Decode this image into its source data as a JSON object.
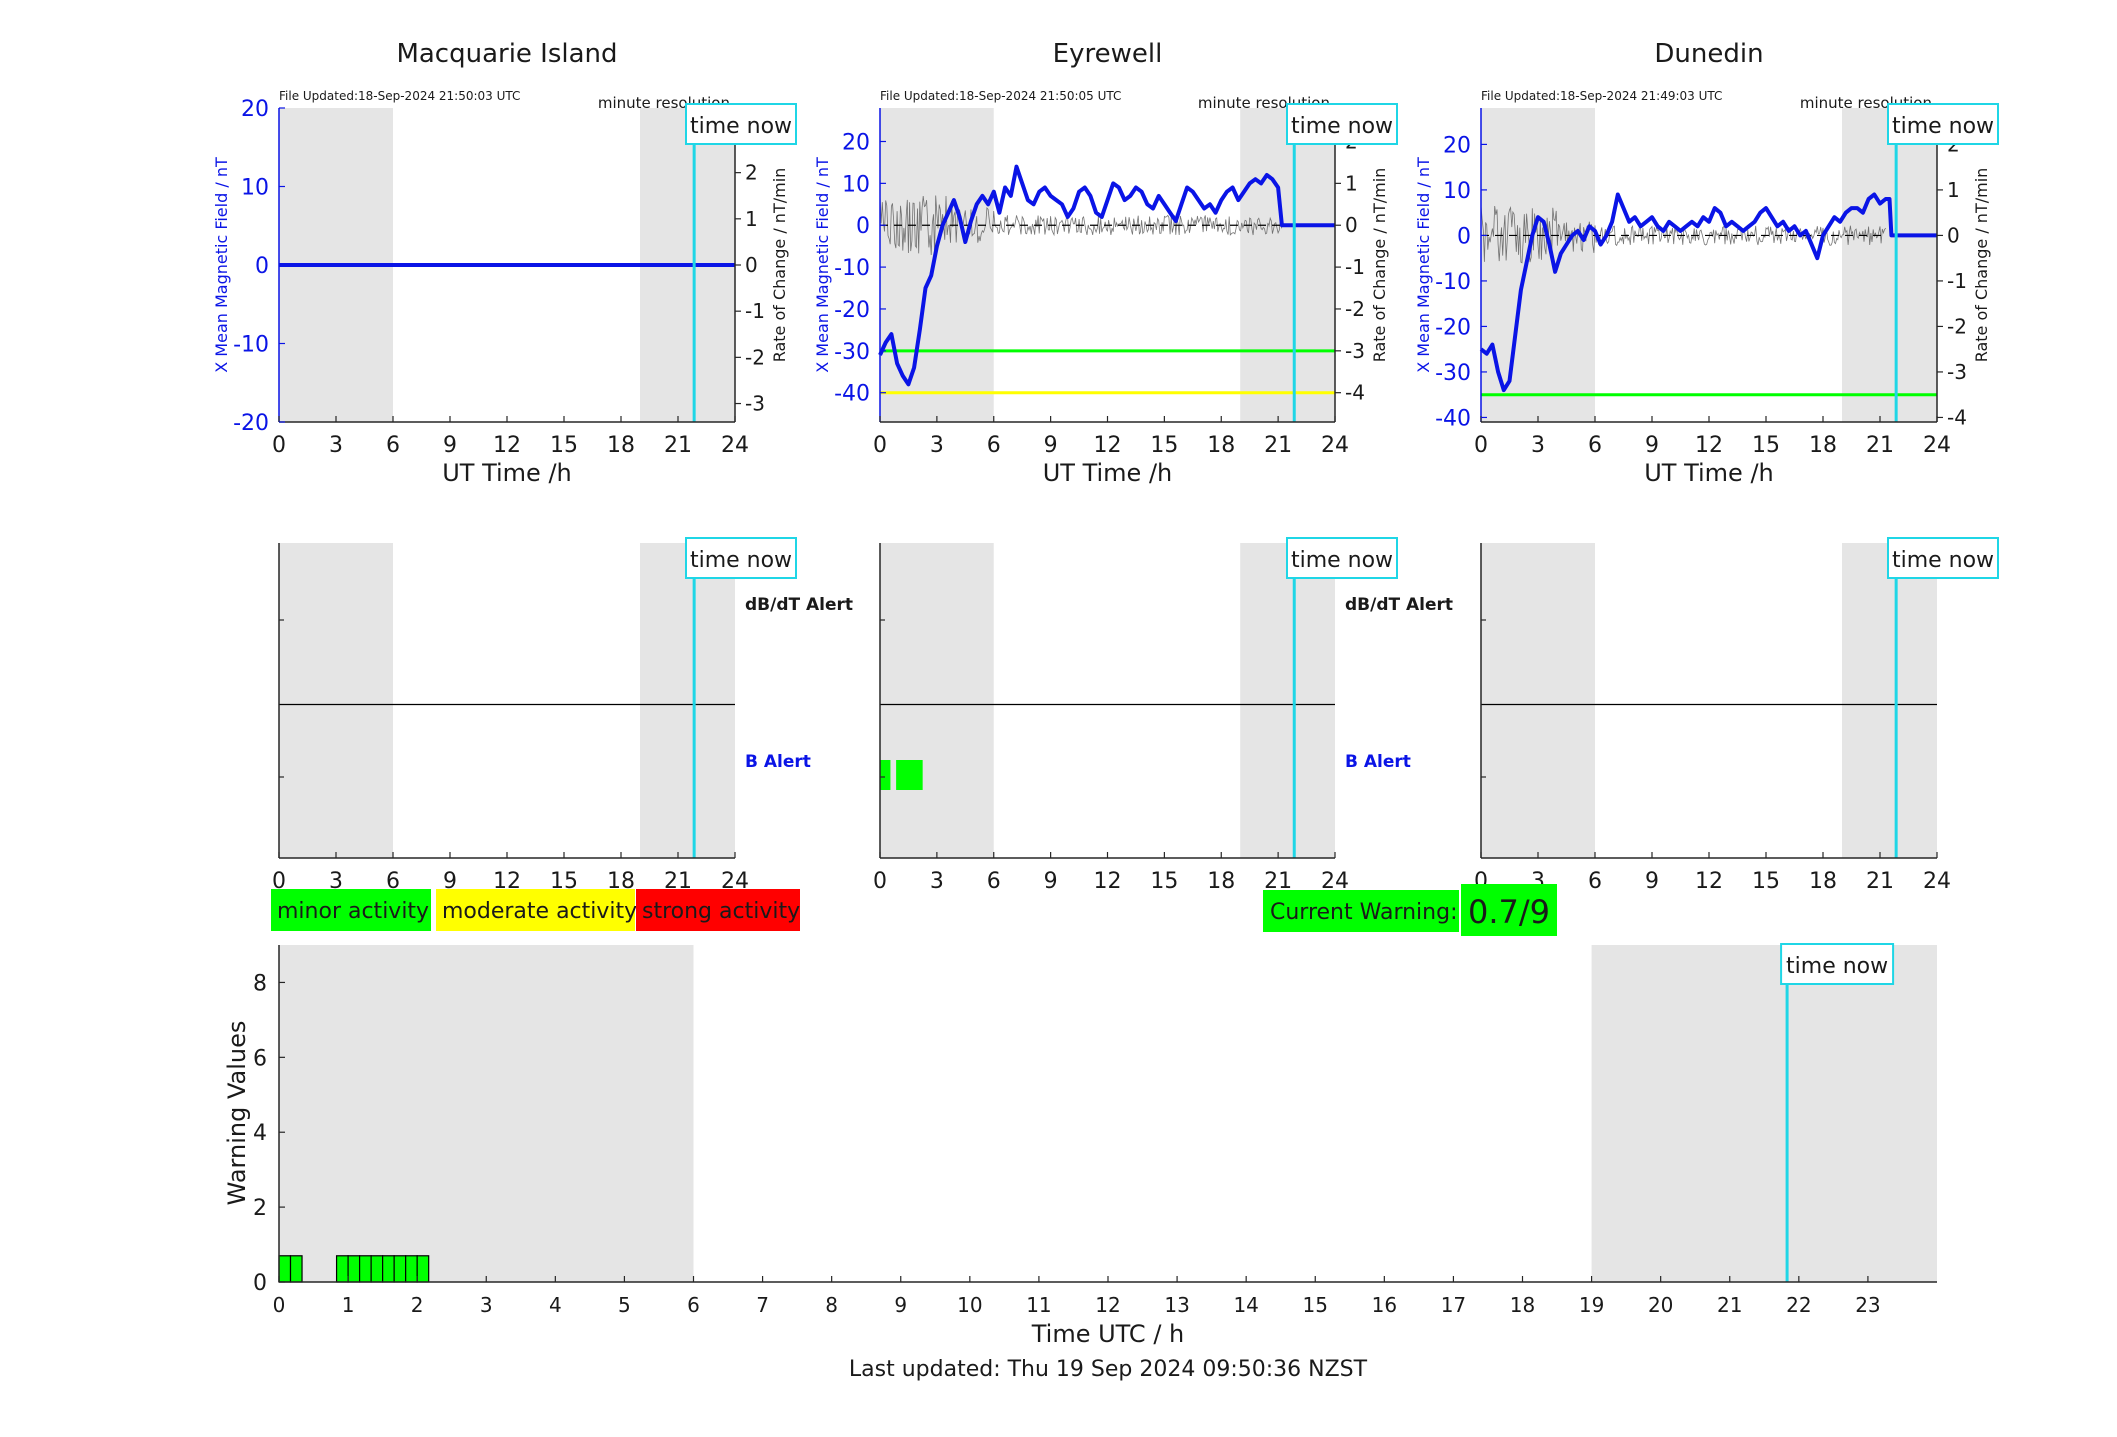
{
  "colors": {
    "night": "#e5e5e5",
    "series": "#0a14e6",
    "rate": "#555555",
    "now": "#1fd6e6",
    "minor": "#00ff00",
    "moderate": "#ffff00",
    "strong": "#ff0000",
    "b_alert": "#0a14e6"
  },
  "common": {
    "time_now_label": "time now",
    "minute_resolution": "minute resolution",
    "x_label": "UT Time /h",
    "left_y_label": "X Mean Magnetic Field / nT",
    "right_y_label": "Rate of Change / nT/min",
    "dbdt_alert": "dB/dT Alert",
    "b_alert": "B Alert"
  },
  "legend": {
    "minor": "minor activity",
    "moderate": "moderate activity",
    "strong": "strong activity"
  },
  "current_warning": {
    "label": "Current Warning:",
    "value": "0.7/9"
  },
  "footer": {
    "last_updated": "Last updated: Thu 19 Sep 2024 09:50:36 NZST"
  },
  "warning_chart": {
    "ylabel": "Warning Values",
    "xlabel": "Time UTC / h"
  },
  "chart_data": [
    {
      "type": "line",
      "title": "Macquarie Island",
      "file_updated": "File Updated:18-Sep-2024 21:50:03 UTC",
      "xlabel": "UT Time /h",
      "ylabel": "X Mean Magnetic Field / nT",
      "ylabel_right": "Rate of Change / nT/min",
      "xlim": [
        0,
        24
      ],
      "xticks": [
        0,
        3,
        6,
        9,
        12,
        15,
        18,
        21,
        24
      ],
      "ylim": [
        -20,
        20
      ],
      "yticks": [
        -20,
        -10,
        0,
        10,
        20
      ],
      "ylim_right": [
        -3.4,
        3.4
      ],
      "yticks_right": [
        -3,
        -2,
        -1,
        0,
        1,
        2,
        3
      ],
      "night_shading": [
        [
          0,
          6
        ],
        [
          19,
          24
        ]
      ],
      "time_now": 21.85,
      "series": [
        {
          "values": [
            [
              0,
              0
            ],
            [
              24,
              0
            ]
          ]
        }
      ],
      "threshold_lines": []
    },
    {
      "type": "line",
      "title": "Eyrewell",
      "file_updated": "File Updated:18-Sep-2024 21:50:05 UTC",
      "xlabel": "UT Time /h",
      "ylabel": "X Mean Magnetic Field / nT",
      "ylabel_right": "Rate of Change / nT/min",
      "xlim": [
        0,
        24
      ],
      "xticks": [
        0,
        3,
        6,
        9,
        12,
        15,
        18,
        21,
        24
      ],
      "ylim": [
        -47,
        28
      ],
      "yticks": [
        -40,
        -30,
        -20,
        -10,
        0,
        10,
        20
      ],
      "ylim_right": [
        -4.7,
        2.8
      ],
      "yticks_right": [
        -4,
        -3,
        -2,
        -1,
        0,
        1,
        2
      ],
      "night_shading": [
        [
          0,
          6
        ],
        [
          19,
          24
        ]
      ],
      "time_now": 21.85,
      "series": [
        {
          "values": [
            [
              0,
              -31
            ],
            [
              0.3,
              -28
            ],
            [
              0.6,
              -26
            ],
            [
              0.9,
              -33
            ],
            [
              1.2,
              -36
            ],
            [
              1.5,
              -38
            ],
            [
              1.8,
              -34
            ],
            [
              2.1,
              -25
            ],
            [
              2.4,
              -15
            ],
            [
              2.7,
              -12
            ],
            [
              3.0,
              -5
            ],
            [
              3.3,
              0
            ],
            [
              3.6,
              3
            ],
            [
              3.9,
              6
            ],
            [
              4.2,
              2
            ],
            [
              4.5,
              -4
            ],
            [
              4.8,
              1
            ],
            [
              5.1,
              5
            ],
            [
              5.4,
              7
            ],
            [
              5.7,
              5
            ],
            [
              6.0,
              8
            ],
            [
              6.3,
              3
            ],
            [
              6.6,
              9
            ],
            [
              6.9,
              7
            ],
            [
              7.2,
              14
            ],
            [
              7.5,
              10
            ],
            [
              7.8,
              6
            ],
            [
              8.1,
              5
            ],
            [
              8.4,
              8
            ],
            [
              8.7,
              9
            ],
            [
              9.0,
              7
            ],
            [
              9.3,
              6
            ],
            [
              9.6,
              5
            ],
            [
              9.9,
              2
            ],
            [
              10.2,
              4
            ],
            [
              10.5,
              8
            ],
            [
              10.8,
              9
            ],
            [
              11.1,
              7
            ],
            [
              11.4,
              3
            ],
            [
              11.7,
              2
            ],
            [
              12.0,
              6
            ],
            [
              12.3,
              10
            ],
            [
              12.6,
              9
            ],
            [
              12.9,
              6
            ],
            [
              13.2,
              7
            ],
            [
              13.5,
              9
            ],
            [
              13.8,
              8
            ],
            [
              14.1,
              5
            ],
            [
              14.4,
              4
            ],
            [
              14.7,
              7
            ],
            [
              15.0,
              5
            ],
            [
              15.3,
              3
            ],
            [
              15.6,
              1
            ],
            [
              15.9,
              5
            ],
            [
              16.2,
              9
            ],
            [
              16.5,
              8
            ],
            [
              16.8,
              6
            ],
            [
              17.1,
              4
            ],
            [
              17.4,
              5
            ],
            [
              17.7,
              3
            ],
            [
              18.0,
              6
            ],
            [
              18.3,
              8
            ],
            [
              18.6,
              9
            ],
            [
              18.9,
              6
            ],
            [
              19.2,
              8
            ],
            [
              19.5,
              10
            ],
            [
              19.8,
              11
            ],
            [
              20.1,
              10
            ],
            [
              20.4,
              12
            ],
            [
              20.7,
              11
            ],
            [
              21.0,
              9
            ],
            [
              21.2,
              0
            ],
            [
              21.85,
              0
            ],
            [
              24,
              0
            ]
          ]
        }
      ],
      "threshold_lines": [
        {
          "value": -30,
          "color": "#00ff00"
        },
        {
          "value": -40,
          "color": "#ffff00"
        }
      ]
    },
    {
      "type": "line",
      "title": "Dunedin",
      "file_updated": "File Updated:18-Sep-2024 21:49:03 UTC",
      "xlabel": "UT Time /h",
      "ylabel": "X Mean Magnetic Field / nT",
      "ylabel_right": "Rate of Change / nT/min",
      "xlim": [
        0,
        24
      ],
      "xticks": [
        0,
        3,
        6,
        9,
        12,
        15,
        18,
        21,
        24
      ],
      "ylim": [
        -41,
        28
      ],
      "yticks": [
        -40,
        -30,
        -20,
        -10,
        0,
        10,
        20
      ],
      "ylim_right": [
        -4.1,
        2.8
      ],
      "yticks_right": [
        -4,
        -3,
        -2,
        -1,
        0,
        1,
        2
      ],
      "night_shading": [
        [
          0,
          6
        ],
        [
          19,
          24
        ]
      ],
      "time_now": 21.85,
      "series": [
        {
          "values": [
            [
              0,
              -25
            ],
            [
              0.3,
              -26
            ],
            [
              0.6,
              -24
            ],
            [
              0.9,
              -30
            ],
            [
              1.2,
              -34
            ],
            [
              1.5,
              -32
            ],
            [
              1.8,
              -22
            ],
            [
              2.1,
              -12
            ],
            [
              2.4,
              -6
            ],
            [
              2.7,
              0
            ],
            [
              3.0,
              4
            ],
            [
              3.3,
              3
            ],
            [
              3.6,
              -2
            ],
            [
              3.9,
              -8
            ],
            [
              4.2,
              -4
            ],
            [
              4.5,
              -2
            ],
            [
              4.8,
              0
            ],
            [
              5.1,
              1
            ],
            [
              5.4,
              -1
            ],
            [
              5.7,
              2
            ],
            [
              6.0,
              1
            ],
            [
              6.3,
              -2
            ],
            [
              6.6,
              0
            ],
            [
              6.9,
              3
            ],
            [
              7.2,
              9
            ],
            [
              7.5,
              6
            ],
            [
              7.8,
              3
            ],
            [
              8.1,
              4
            ],
            [
              8.4,
              2
            ],
            [
              8.7,
              3
            ],
            [
              9.0,
              4
            ],
            [
              9.3,
              2
            ],
            [
              9.6,
              1
            ],
            [
              9.9,
              3
            ],
            [
              10.2,
              2
            ],
            [
              10.5,
              1
            ],
            [
              10.8,
              2
            ],
            [
              11.1,
              3
            ],
            [
              11.4,
              2
            ],
            [
              11.7,
              4
            ],
            [
              12.0,
              3
            ],
            [
              12.3,
              6
            ],
            [
              12.6,
              5
            ],
            [
              12.9,
              2
            ],
            [
              13.2,
              3
            ],
            [
              13.5,
              2
            ],
            [
              13.8,
              1
            ],
            [
              14.1,
              2
            ],
            [
              14.4,
              3
            ],
            [
              14.7,
              5
            ],
            [
              15.0,
              6
            ],
            [
              15.3,
              4
            ],
            [
              15.6,
              2
            ],
            [
              15.9,
              3
            ],
            [
              16.2,
              1
            ],
            [
              16.5,
              2
            ],
            [
              16.8,
              0
            ],
            [
              17.1,
              1
            ],
            [
              17.4,
              -2
            ],
            [
              17.7,
              -5
            ],
            [
              18.0,
              0
            ],
            [
              18.3,
              2
            ],
            [
              18.6,
              4
            ],
            [
              18.9,
              3
            ],
            [
              19.2,
              5
            ],
            [
              19.5,
              6
            ],
            [
              19.8,
              6
            ],
            [
              20.1,
              5
            ],
            [
              20.4,
              8
            ],
            [
              20.7,
              9
            ],
            [
              21.0,
              7
            ],
            [
              21.3,
              8
            ],
            [
              21.5,
              8
            ],
            [
              21.6,
              0
            ],
            [
              24,
              0
            ]
          ]
        }
      ],
      "threshold_lines": [
        {
          "value": -35,
          "color": "#00ff00"
        }
      ]
    },
    {
      "type": "bar",
      "title": "",
      "xlabel": "Time UTC / h",
      "ylabel": "Warning Values",
      "xlim": [
        0,
        24
      ],
      "xticks": [
        0,
        1,
        2,
        3,
        4,
        5,
        6,
        7,
        8,
        9,
        10,
        11,
        12,
        13,
        14,
        15,
        16,
        17,
        18,
        19,
        20,
        21,
        22,
        23
      ],
      "ylim": [
        0,
        9
      ],
      "yticks": [
        0,
        2,
        4,
        6,
        8
      ],
      "night_shading": [
        [
          0,
          6
        ],
        [
          19,
          24
        ]
      ],
      "time_now": 21.83,
      "bar_width_h": 0.1667,
      "bars": [
        [
          0.0,
          0.7
        ],
        [
          0.1667,
          0.7
        ],
        [
          0.8333,
          0.7
        ],
        [
          1.0,
          0.7
        ],
        [
          1.1667,
          0.7
        ],
        [
          1.3333,
          0.7
        ],
        [
          1.5,
          0.7
        ],
        [
          1.6667,
          0.7
        ],
        [
          1.8333,
          0.7
        ],
        [
          2.0,
          0.7
        ]
      ]
    }
  ],
  "alert_panels": [
    {
      "name": "macquarie",
      "xticks": [
        0,
        3,
        6,
        9,
        12,
        15,
        18,
        21,
        24
      ],
      "night_shading": [
        [
          0,
          6
        ],
        [
          19,
          24
        ]
      ],
      "time_now": 21.85,
      "b_alert_blocks": []
    },
    {
      "name": "eyrewell",
      "xticks": [
        0,
        3,
        6,
        9,
        12,
        15,
        18,
        21,
        24
      ],
      "night_shading": [
        [
          0,
          6
        ],
        [
          19,
          24
        ]
      ],
      "time_now": 21.85,
      "b_alert_blocks": [
        [
          0,
          0.55
        ],
        [
          0.85,
          2.25
        ]
      ]
    },
    {
      "name": "dunedin",
      "xticks": [
        0,
        3,
        6,
        9,
        12,
        15,
        18,
        21,
        24
      ],
      "night_shading": [
        [
          0,
          6
        ],
        [
          19,
          24
        ]
      ],
      "time_now": 21.85,
      "b_alert_blocks": []
    }
  ]
}
